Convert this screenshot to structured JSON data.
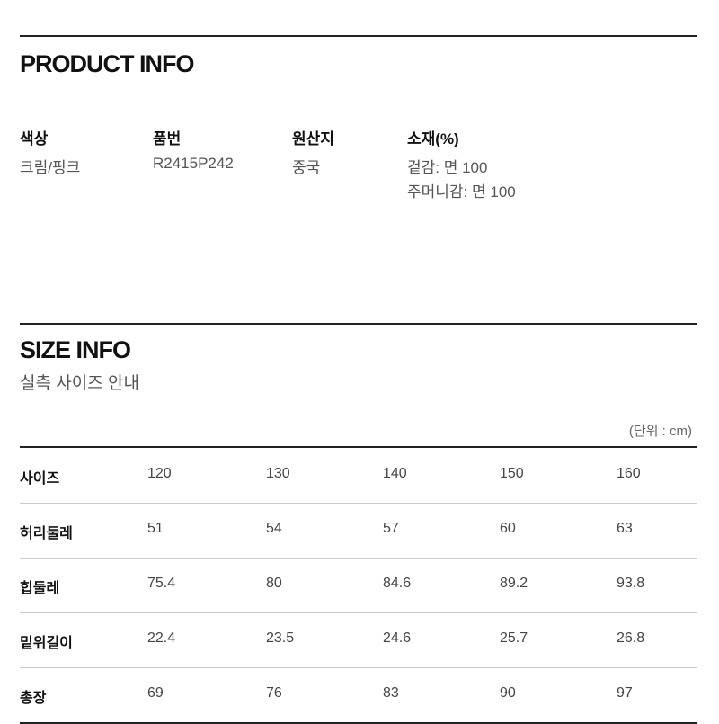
{
  "product_info": {
    "title": "PRODUCT INFO",
    "fields": [
      {
        "label": "색상",
        "values": [
          "크림/핑크"
        ]
      },
      {
        "label": "품번",
        "values": [
          "R2415P242"
        ]
      },
      {
        "label": "원산지",
        "values": [
          "중국"
        ]
      },
      {
        "label": "소재(%)",
        "values": [
          "겉감: 면 100",
          "주머니감: 면 100"
        ]
      }
    ]
  },
  "size_info": {
    "title": "SIZE INFO",
    "subtitle": "실측 사이즈 안내",
    "unit": "(단위 : cm)",
    "rows": [
      {
        "label": "사이즈",
        "values": [
          "120",
          "130",
          "140",
          "150",
          "160"
        ]
      },
      {
        "label": "허리둘레",
        "values": [
          "51",
          "54",
          "57",
          "60",
          "63"
        ]
      },
      {
        "label": "힙둘레",
        "values": [
          "75.4",
          "80",
          "84.6",
          "89.2",
          "93.8"
        ]
      },
      {
        "label": "밑위길이",
        "values": [
          "22.4",
          "23.5",
          "24.6",
          "25.7",
          "26.8"
        ]
      },
      {
        "label": "총장",
        "values": [
          "69",
          "76",
          "83",
          "90",
          "97"
        ]
      }
    ]
  }
}
